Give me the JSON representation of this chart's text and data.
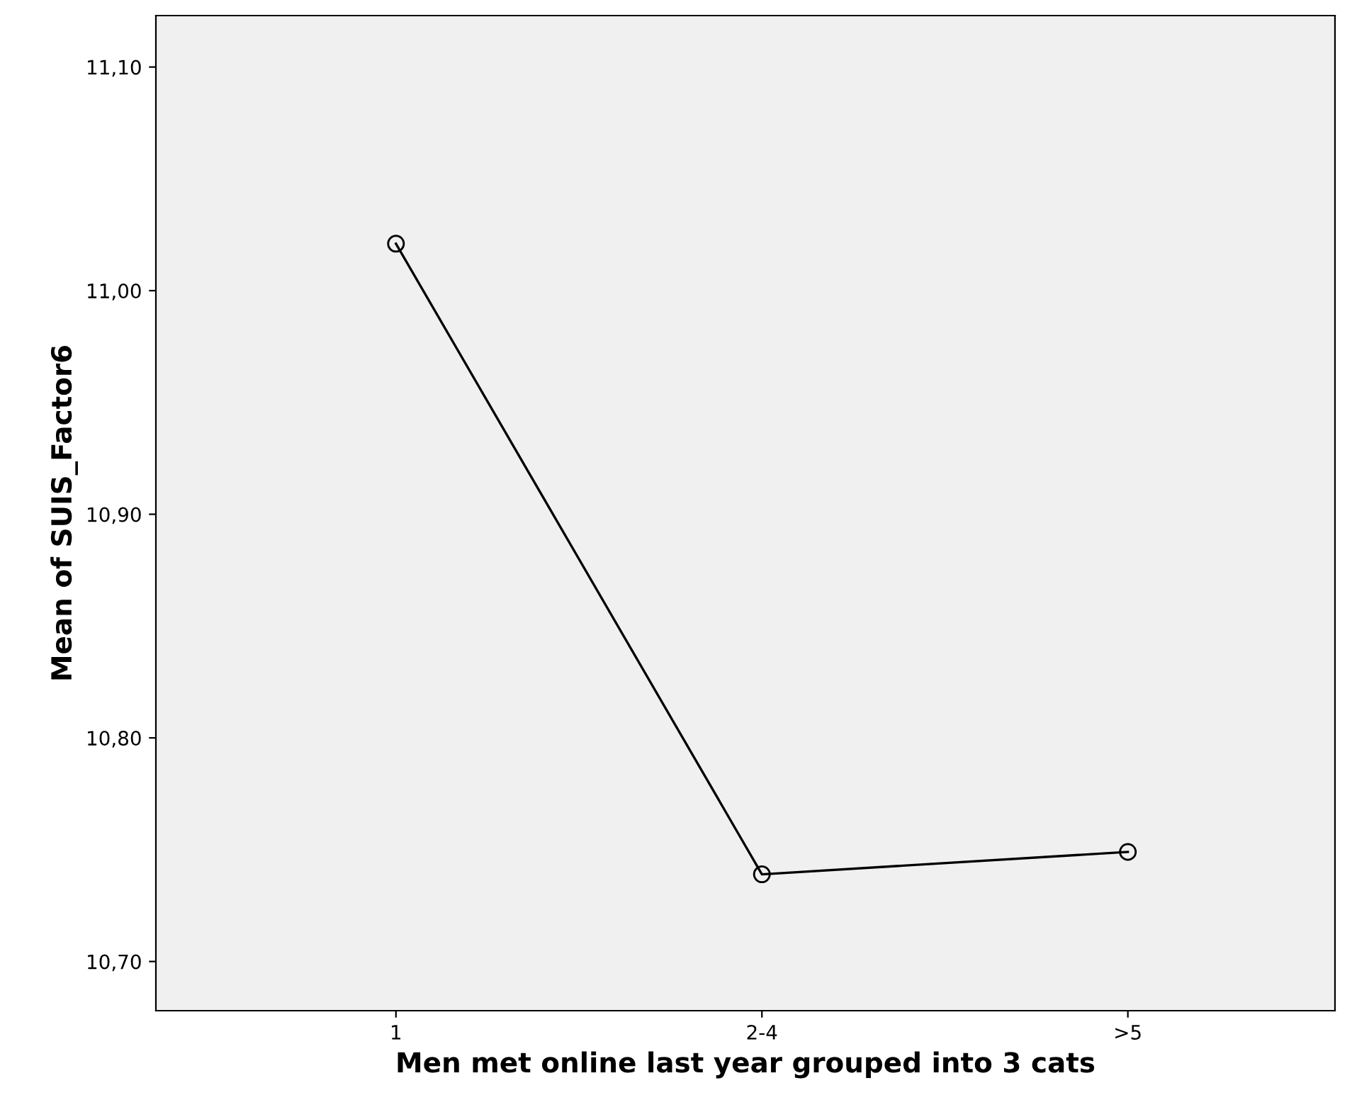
{
  "chart_data": {
    "type": "line",
    "xlabel": "Men met online last year grouped into 3 cats",
    "ylabel": "Mean of SUIS_Factor6",
    "categories": [
      "1",
      "2-4",
      ">5"
    ],
    "series": [
      {
        "color": "#000000",
        "values": [
          11.021,
          10.739,
          10.749
        ]
      }
    ],
    "ylim": [
      10.678,
      11.123
    ],
    "yticks": [
      {
        "value": 10.7,
        "label": "10,70"
      },
      {
        "value": 10.8,
        "label": "10,80"
      },
      {
        "value": 10.9,
        "label": "10,90"
      },
      {
        "value": 11.0,
        "label": "11,00"
      },
      {
        "value": 11.1,
        "label": "11,10"
      }
    ],
    "marker": "circle",
    "line_style": "solid",
    "grid": false,
    "legend": false
  }
}
